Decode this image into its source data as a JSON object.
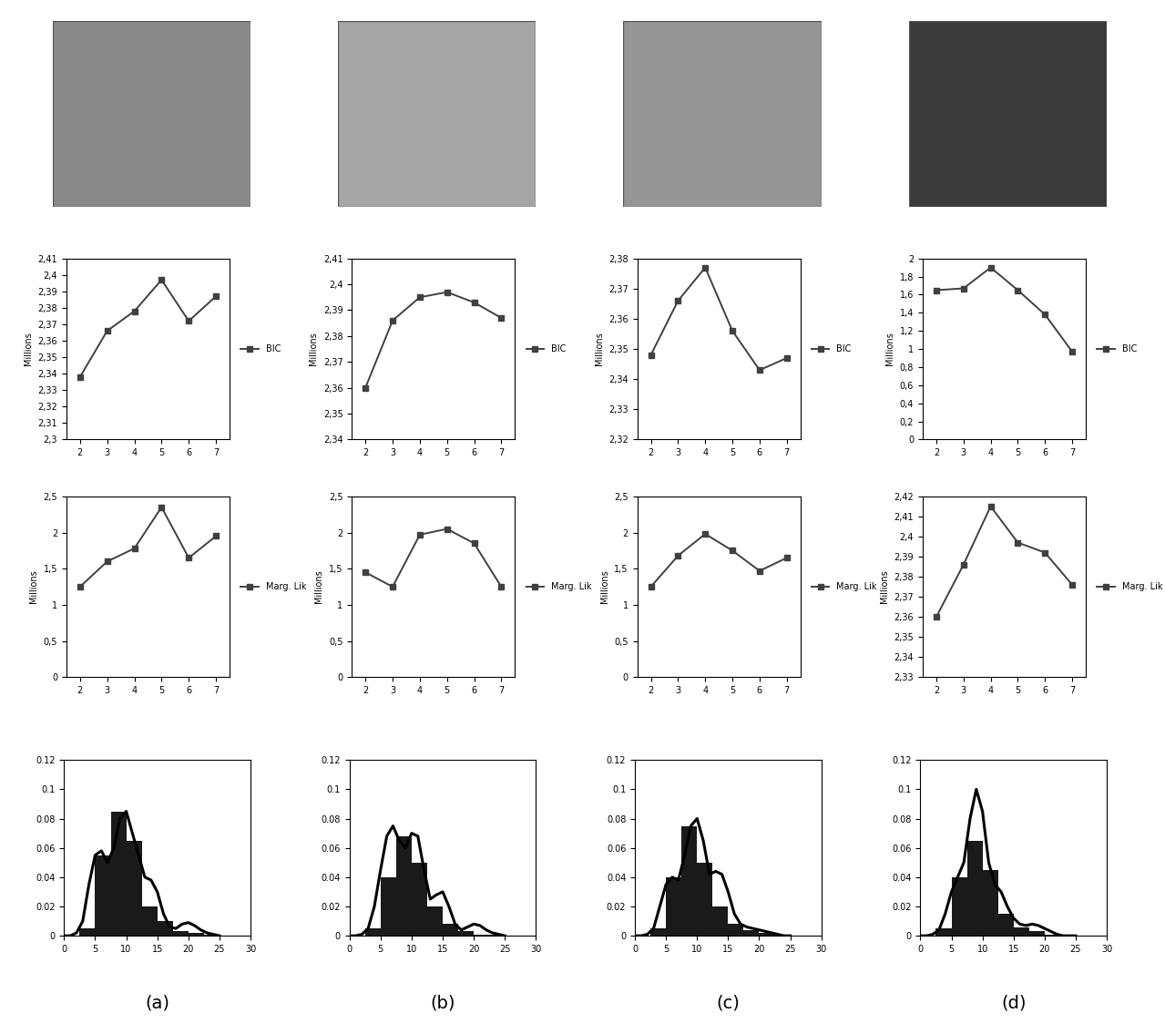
{
  "panel_labels": [
    "(a)",
    "(b)",
    "(c)",
    "(d)"
  ],
  "chart_data": [
    {
      "type": "line",
      "y_label": "Millions",
      "x": [
        2,
        3,
        4,
        5,
        6,
        7
      ],
      "xlim": [
        1.5,
        7.5
      ],
      "xticks": [
        2,
        3,
        4,
        5,
        6,
        7
      ],
      "ylim": [
        2.3,
        2.41
      ],
      "yticks": [
        {
          "value": 2.3,
          "label": "2,3"
        },
        {
          "value": 2.31,
          "label": "2,31"
        },
        {
          "value": 2.32,
          "label": "2,32"
        },
        {
          "value": 2.33,
          "label": "2,33"
        },
        {
          "value": 2.34,
          "label": "2,34"
        },
        {
          "value": 2.35,
          "label": "2,35"
        },
        {
          "value": 2.36,
          "label": "2,36"
        },
        {
          "value": 2.37,
          "label": "2,37"
        },
        {
          "value": 2.38,
          "label": "2,38"
        },
        {
          "value": 2.39,
          "label": "2,39"
        },
        {
          "value": 2.4,
          "label": "2,4"
        },
        {
          "value": 2.41,
          "label": "2,41"
        }
      ],
      "legend": "right",
      "series": [
        {
          "name": "BIC",
          "color": "#404040",
          "marker": "square",
          "values": [
            2.338,
            2.366,
            2.378,
            2.397,
            2.372,
            2.387
          ]
        }
      ]
    },
    {
      "type": "line",
      "y_label": "Millions",
      "x": [
        2,
        3,
        4,
        5,
        6,
        7
      ],
      "xlim": [
        1.5,
        7.5
      ],
      "xticks": [
        2,
        3,
        4,
        5,
        6,
        7
      ],
      "ylim": [
        0,
        2.5
      ],
      "yticks": [
        0,
        {
          "value": 0.5,
          "label": "0,5"
        },
        1,
        {
          "value": 1.5,
          "label": "1,5"
        },
        2,
        {
          "value": 2.5,
          "label": "2,5"
        }
      ],
      "legend": "right",
      "series": [
        {
          "name": "Marg. Lik",
          "color": "#404040",
          "marker": "square",
          "values": [
            1.25,
            1.6,
            1.78,
            2.35,
            1.65,
            1.95
          ]
        }
      ]
    },
    {
      "type": "histogram",
      "bins": [
        2.5,
        5,
        7.5,
        10,
        12.5,
        15,
        17.5,
        20,
        22.5,
        25
      ],
      "values": [
        0.005,
        0.055,
        0.085,
        0.065,
        0.02,
        0.01,
        0.003,
        0.002,
        0.001
      ],
      "color": "#1a1a1a",
      "xlim": [
        0,
        30
      ],
      "xticks": [
        0,
        5,
        10,
        15,
        20,
        25,
        30
      ],
      "ylim": [
        0,
        0.12
      ],
      "yticks": [
        0,
        0.02,
        0.04,
        0.06,
        0.08,
        0.1,
        0.12
      ],
      "curve": {
        "color": "#000000",
        "x": [
          0,
          1,
          2,
          3,
          4,
          5,
          6,
          7,
          8,
          9,
          10,
          11,
          12,
          13,
          14,
          15,
          16,
          17,
          18,
          19,
          20,
          21,
          22,
          23,
          24,
          25
        ],
        "values": [
          0,
          0,
          0.002,
          0.01,
          0.035,
          0.055,
          0.058,
          0.05,
          0.06,
          0.08,
          0.085,
          0.07,
          0.055,
          0.04,
          0.038,
          0.03,
          0.015,
          0.006,
          0.005,
          0.008,
          0.009,
          0.007,
          0.004,
          0.002,
          0.001,
          0
        ]
      }
    },
    {
      "type": "line",
      "y_label": "Millions",
      "x": [
        2,
        3,
        4,
        5,
        6,
        7
      ],
      "xlim": [
        1.5,
        7.5
      ],
      "xticks": [
        2,
        3,
        4,
        5,
        6,
        7
      ],
      "ylim": [
        2.34,
        2.41
      ],
      "yticks": [
        {
          "value": 2.34,
          "label": "2,34"
        },
        {
          "value": 2.35,
          "label": "2,35"
        },
        {
          "value": 2.36,
          "label": "2,36"
        },
        {
          "value": 2.37,
          "label": "2,37"
        },
        {
          "value": 2.38,
          "label": "2,38"
        },
        {
          "value": 2.39,
          "label": "2,39"
        },
        {
          "value": 2.4,
          "label": "2,4"
        },
        {
          "value": 2.41,
          "label": "2,41"
        }
      ],
      "legend": "right",
      "series": [
        {
          "name": "BIC",
          "color": "#404040",
          "marker": "square",
          "values": [
            2.36,
            2.386,
            2.395,
            2.397,
            2.393,
            2.387
          ]
        }
      ]
    },
    {
      "type": "line",
      "y_label": "Millions",
      "x": [
        2,
        3,
        4,
        5,
        6,
        7
      ],
      "xlim": [
        1.5,
        7.5
      ],
      "xticks": [
        2,
        3,
        4,
        5,
        6,
        7
      ],
      "ylim": [
        0,
        2.5
      ],
      "yticks": [
        0,
        {
          "value": 0.5,
          "label": "0,5"
        },
        1,
        {
          "value": 1.5,
          "label": "1,5"
        },
        2,
        {
          "value": 2.5,
          "label": "2,5"
        }
      ],
      "legend": "right",
      "series": [
        {
          "name": "Marg. Lik",
          "color": "#404040",
          "marker": "square",
          "values": [
            1.45,
            1.25,
            1.97,
            2.05,
            1.85,
            1.25
          ]
        }
      ]
    },
    {
      "type": "histogram",
      "bins": [
        2.5,
        5,
        7.5,
        10,
        12.5,
        15,
        17.5,
        20,
        22.5,
        25
      ],
      "values": [
        0.005,
        0.04,
        0.068,
        0.05,
        0.02,
        0.008,
        0.003,
        0.001,
        0.0005
      ],
      "color": "#1a1a1a",
      "xlim": [
        0,
        30
      ],
      "xticks": [
        0,
        5,
        10,
        15,
        20,
        25,
        30
      ],
      "ylim": [
        0,
        0.12
      ],
      "yticks": [
        0,
        0.02,
        0.04,
        0.06,
        0.08,
        0.1,
        0.12
      ],
      "curve": {
        "color": "#000000",
        "x": [
          0,
          1,
          2,
          3,
          4,
          5,
          6,
          7,
          8,
          9,
          10,
          11,
          12,
          13,
          14,
          15,
          16,
          17,
          18,
          19,
          20,
          21,
          22,
          23,
          24,
          25
        ],
        "values": [
          0,
          0,
          0.001,
          0.005,
          0.02,
          0.045,
          0.068,
          0.075,
          0.065,
          0.06,
          0.07,
          0.068,
          0.045,
          0.025,
          0.028,
          0.03,
          0.02,
          0.008,
          0.004,
          0.006,
          0.008,
          0.007,
          0.004,
          0.002,
          0.001,
          0
        ]
      }
    },
    {
      "type": "line",
      "y_label": "Millions",
      "x": [
        2,
        3,
        4,
        5,
        6,
        7
      ],
      "xlim": [
        1.5,
        7.5
      ],
      "xticks": [
        2,
        3,
        4,
        5,
        6,
        7
      ],
      "ylim": [
        2.32,
        2.38
      ],
      "yticks": [
        {
          "value": 2.32,
          "label": "2,32"
        },
        {
          "value": 2.33,
          "label": "2,33"
        },
        {
          "value": 2.34,
          "label": "2,34"
        },
        {
          "value": 2.35,
          "label": "2,35"
        },
        {
          "value": 2.36,
          "label": "2,36"
        },
        {
          "value": 2.37,
          "label": "2,37"
        },
        {
          "value": 2.38,
          "label": "2,38"
        }
      ],
      "legend": "right",
      "series": [
        {
          "name": "BIC",
          "color": "#404040",
          "marker": "square",
          "values": [
            2.348,
            2.366,
            2.377,
            2.356,
            2.343,
            2.347
          ]
        }
      ]
    },
    {
      "type": "line",
      "y_label": "Millions",
      "x": [
        2,
        3,
        4,
        5,
        6,
        7
      ],
      "xlim": [
        1.5,
        7.5
      ],
      "xticks": [
        2,
        3,
        4,
        5,
        6,
        7
      ],
      "ylim": [
        0,
        2.5
      ],
      "yticks": [
        0,
        {
          "value": 0.5,
          "label": "0,5"
        },
        1,
        {
          "value": 1.5,
          "label": "1,5"
        },
        2,
        {
          "value": 2.5,
          "label": "2,5"
        }
      ],
      "legend": "right",
      "series": [
        {
          "name": "Marg. Lik",
          "color": "#404040",
          "marker": "square",
          "values": [
            1.25,
            1.68,
            1.98,
            1.75,
            1.47,
            1.65
          ]
        }
      ]
    },
    {
      "type": "histogram",
      "bins": [
        2.5,
        5,
        7.5,
        10,
        12.5,
        15,
        17.5,
        20,
        22.5,
        25
      ],
      "values": [
        0.005,
        0.04,
        0.075,
        0.05,
        0.02,
        0.008,
        0.004,
        0.002,
        0.001
      ],
      "color": "#1a1a1a",
      "xlim": [
        0,
        30
      ],
      "xticks": [
        0,
        5,
        10,
        15,
        20,
        25,
        30
      ],
      "ylim": [
        0,
        0.12
      ],
      "yticks": [
        0,
        0.02,
        0.04,
        0.06,
        0.08,
        0.1,
        0.12
      ],
      "curve": {
        "color": "#000000",
        "x": [
          0,
          1,
          2,
          3,
          4,
          5,
          6,
          7,
          8,
          9,
          10,
          11,
          12,
          13,
          14,
          15,
          16,
          17,
          18,
          19,
          20,
          21,
          22,
          23,
          24,
          25
        ],
        "values": [
          0,
          0,
          0.001,
          0.005,
          0.02,
          0.035,
          0.04,
          0.038,
          0.055,
          0.075,
          0.08,
          0.065,
          0.042,
          0.044,
          0.042,
          0.03,
          0.015,
          0.008,
          0.006,
          0.005,
          0.004,
          0.003,
          0.002,
          0.001,
          0,
          0
        ]
      }
    },
    {
      "type": "line",
      "y_label": "Millions",
      "x": [
        2,
        3,
        4,
        5,
        6,
        7
      ],
      "xlim": [
        1.5,
        7.5
      ],
      "xticks": [
        2,
        3,
        4,
        5,
        6,
        7
      ],
      "ylim": [
        0,
        2
      ],
      "yticks": [
        0,
        {
          "value": 0.2,
          "label": "0,2"
        },
        {
          "value": 0.4,
          "label": "0,4"
        },
        {
          "value": 0.6,
          "label": "0,6"
        },
        {
          "value": 0.8,
          "label": "0,8"
        },
        1,
        {
          "value": 1.2,
          "label": "1,2"
        },
        {
          "value": 1.4,
          "label": "1,4"
        },
        {
          "value": 1.6,
          "label": "1,6"
        },
        {
          "value": 1.8,
          "label": "1,8"
        },
        2
      ],
      "legend": "right",
      "series": [
        {
          "name": "BIC",
          "color": "#404040",
          "marker": "square",
          "values": [
            1.65,
            1.67,
            1.9,
            1.65,
            1.38,
            0.97
          ]
        }
      ]
    },
    {
      "type": "line",
      "y_label": "Millions",
      "x": [
        2,
        3,
        4,
        5,
        6,
        7
      ],
      "xlim": [
        1.5,
        7.5
      ],
      "xticks": [
        2,
        3,
        4,
        5,
        6,
        7
      ],
      "ylim": [
        2.33,
        2.42
      ],
      "yticks": [
        {
          "value": 2.33,
          "label": "2,33"
        },
        {
          "value": 2.34,
          "label": "2,34"
        },
        {
          "value": 2.35,
          "label": "2,35"
        },
        {
          "value": 2.36,
          "label": "2,36"
        },
        {
          "value": 2.37,
          "label": "2,37"
        },
        {
          "value": 2.38,
          "label": "2,38"
        },
        {
          "value": 2.39,
          "label": "2,39"
        },
        {
          "value": 2.4,
          "label": "2,4"
        },
        {
          "value": 2.41,
          "label": "2,41"
        },
        {
          "value": 2.42,
          "label": "2,42"
        }
      ],
      "legend": "right",
      "series": [
        {
          "name": "Marg. Lik",
          "color": "#404040",
          "marker": "square",
          "values": [
            2.36,
            2.386,
            2.415,
            2.397,
            2.392,
            2.376
          ]
        }
      ]
    },
    {
      "type": "histogram",
      "bins": [
        2.5,
        5,
        7.5,
        10,
        12.5,
        15,
        17.5,
        20,
        22.5,
        25
      ],
      "values": [
        0.005,
        0.04,
        0.065,
        0.045,
        0.015,
        0.006,
        0.003,
        0.001,
        0.0005
      ],
      "color": "#1a1a1a",
      "xlim": [
        0,
        30
      ],
      "xticks": [
        0,
        5,
        10,
        15,
        20,
        25,
        30
      ],
      "ylim": [
        0,
        0.12
      ],
      "yticks": [
        0,
        0.02,
        0.04,
        0.06,
        0.08,
        0.1,
        0.12
      ],
      "curve": {
        "color": "#000000",
        "x": [
          0,
          1,
          2,
          3,
          4,
          5,
          6,
          7,
          8,
          9,
          10,
          11,
          12,
          13,
          14,
          15,
          16,
          17,
          18,
          19,
          20,
          21,
          22,
          23,
          24,
          25
        ],
        "values": [
          0,
          0,
          0.001,
          0.004,
          0.015,
          0.03,
          0.04,
          0.05,
          0.08,
          0.1,
          0.085,
          0.05,
          0.035,
          0.03,
          0.02,
          0.012,
          0.008,
          0.007,
          0.008,
          0.007,
          0.005,
          0.003,
          0.001,
          0,
          0,
          0
        ]
      }
    }
  ]
}
